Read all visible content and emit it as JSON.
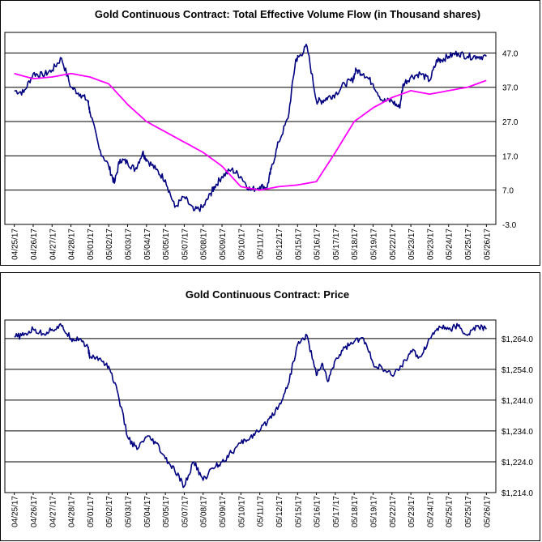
{
  "chart_data": [
    {
      "type": "line",
      "title": "Gold Continuous Contract: Total Effective Volume Flow (in Thousand shares)",
      "xlabel": "",
      "ylabel": "",
      "ylim": [
        -3.0,
        53.0
      ],
      "y_ticks": [
        "47.0",
        "37.0",
        "27.0",
        "17.0",
        "7.0",
        "-3.0"
      ],
      "y_tick_values": [
        47,
        37,
        27,
        17,
        7,
        -3
      ],
      "grid": "horizontal",
      "categories": [
        "04/25/17",
        "04/26/17",
        "04/27/17",
        "04/28/17",
        "05/01/17",
        "05/02/17",
        "05/03/17",
        "05/04/17",
        "05/05/17",
        "05/07/17",
        "05/08/17",
        "05/09/17",
        "05/10/17",
        "05/11/17",
        "05/12/17",
        "05/15/17",
        "05/16/17",
        "05/17/17",
        "05/18/17",
        "05/19/17",
        "05/22/17",
        "05/23/17",
        "05/23/17",
        "05/24/17",
        "05/25/17",
        "05/26/17"
      ],
      "series": [
        {
          "color": "#000080",
          "x": [
            0,
            0.5,
            1,
            1.5,
            2,
            2.5,
            3,
            3.5,
            3.9,
            4,
            4.5,
            5,
            5.3,
            5.6,
            6,
            6.4,
            6.8,
            7,
            7.5,
            8,
            8.5,
            9,
            9.5,
            10,
            10.4,
            10.6,
            11,
            11.5,
            12,
            12.5,
            13,
            13.4,
            13.6,
            14,
            14.5,
            14.9,
            15.1,
            15.5,
            16,
            16.3,
            16.6,
            17,
            17.5,
            17.9,
            18.1,
            18.5,
            19,
            19.5,
            20,
            20.4,
            20.6,
            21,
            21.5,
            22,
            22.4,
            22.6,
            23,
            23.5,
            24,
            24.5,
            25
          ],
          "values": [
            36,
            35.5,
            41,
            40.5,
            42,
            45.5,
            37,
            35,
            33,
            30,
            19,
            14,
            9,
            16,
            15,
            13,
            18,
            16,
            13,
            10,
            2,
            5,
            1,
            2,
            6,
            8,
            11,
            13,
            11,
            7,
            8,
            8,
            13,
            21,
            28,
            45,
            46,
            49,
            33,
            33,
            34,
            35,
            38,
            39,
            42,
            41,
            38,
            33,
            33,
            31,
            38,
            40,
            41,
            39,
            45,
            45,
            46,
            47,
            46,
            46,
            46
          ]
        },
        {
          "color": "#ff00ff",
          "x": [
            0,
            1,
            2,
            3,
            4,
            5,
            6,
            7,
            8,
            9,
            10,
            11,
            12,
            13,
            14,
            15,
            16,
            17,
            18,
            19,
            20,
            21,
            22,
            23,
            24,
            25
          ],
          "values": [
            41,
            39.5,
            40,
            41,
            40,
            38,
            32,
            27,
            24,
            21,
            18,
            14,
            8,
            7,
            8,
            8.5,
            9.5,
            18,
            27,
            31,
            34,
            36,
            35,
            36,
            37,
            39
          ]
        }
      ]
    },
    {
      "type": "line",
      "title": "Gold Continuous Contract: Price",
      "xlabel": "",
      "ylabel": "",
      "ylim": [
        1214,
        1270
      ],
      "y_ticks": [
        "$1,264.0",
        "$1,254.0",
        "$1,244.0",
        "$1,234.0",
        "$1,224.0",
        "$1,214.0"
      ],
      "y_tick_values": [
        1264,
        1254,
        1244,
        1234,
        1224,
        1214
      ],
      "grid": "horizontal",
      "categories": [
        "04/25/17",
        "04/26/17",
        "04/27/17",
        "04/28/17",
        "05/01/17",
        "05/02/17",
        "05/03/17",
        "05/04/17",
        "05/05/17",
        "05/07/17",
        "05/08/17",
        "05/09/17",
        "05/10/17",
        "05/11/17",
        "05/12/17",
        "05/15/17",
        "05/16/17",
        "05/17/17",
        "05/18/17",
        "05/19/17",
        "05/22/17",
        "05/23/17",
        "05/24/17",
        "05/25/17",
        "05/25/17",
        "05/26/17"
      ],
      "series": [
        {
          "color": "#000080",
          "x": [
            0,
            0.5,
            1,
            1.5,
            2,
            2.5,
            3,
            3.5,
            3.9,
            4,
            4.5,
            5,
            5.5,
            6,
            6.5,
            7,
            7.5,
            8,
            8.5,
            9,
            9.5,
            10,
            10.5,
            11,
            11.5,
            12,
            12.5,
            13,
            13.5,
            14,
            14.5,
            15,
            15.5,
            16,
            16.3,
            16.6,
            17,
            17.5,
            18,
            18.5,
            19,
            19.5,
            20,
            20.5,
            21,
            21.5,
            22,
            22.5,
            23,
            23.5,
            24,
            24.5,
            25
          ],
          "values": [
            1264.5,
            1265,
            1267,
            1265.5,
            1267,
            1268,
            1264,
            1264,
            1261,
            1258,
            1257.5,
            1255,
            1246,
            1232,
            1228,
            1232,
            1230,
            1225,
            1221,
            1216,
            1224,
            1218,
            1222,
            1224,
            1227,
            1230,
            1232,
            1234,
            1238,
            1242,
            1249,
            1262,
            1265,
            1252,
            1256,
            1250,
            1257,
            1261,
            1263,
            1264,
            1256,
            1254,
            1252,
            1255,
            1260,
            1258,
            1264,
            1268,
            1267,
            1268,
            1265,
            1268,
            1267
          ]
        }
      ]
    }
  ]
}
